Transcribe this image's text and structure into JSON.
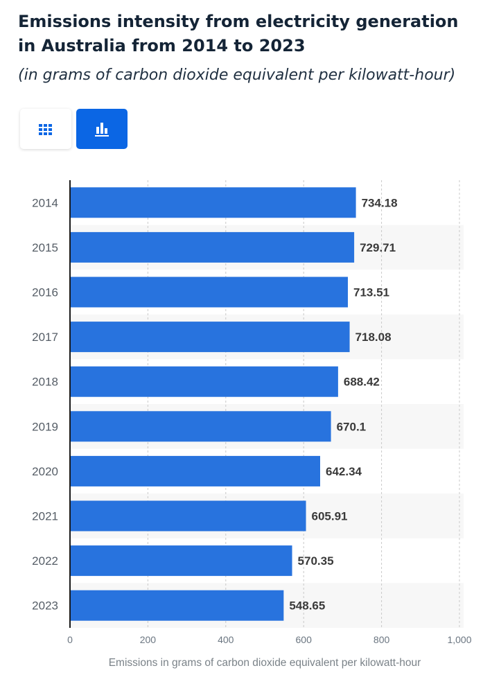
{
  "header": {
    "title": "Emissions intensity from electricity generation in Australia from 2014 to 2023",
    "subtitle": "(in grams of carbon dioxide equivalent per kilowatt-hour)"
  },
  "view_toggle": {
    "table_icon": "grid-table-icon",
    "chart_icon": "bar-chart-icon",
    "selected": "chart"
  },
  "colors": {
    "bar": "#2873de",
    "accent": "#0b66e4",
    "band": "#f7f7f7",
    "grid": "#c8c8c8"
  },
  "chart_data": {
    "type": "bar",
    "orientation": "horizontal",
    "categories": [
      "2014",
      "2015",
      "2016",
      "2017",
      "2018",
      "2019",
      "2020",
      "2021",
      "2022",
      "2023"
    ],
    "values": [
      734.18,
      729.71,
      713.51,
      718.08,
      688.42,
      670.1,
      642.34,
      605.91,
      570.35,
      548.65
    ],
    "value_labels": [
      "734.18",
      "729.71",
      "713.51",
      "718.08",
      "688.42",
      "670.1",
      "642.34",
      "605.91",
      "570.35",
      "548.65"
    ],
    "xlabel": "Emissions in grams of carbon dioxide equivalent per kilowatt-hour",
    "xlim": [
      0,
      1000
    ],
    "x_ticks": [
      0,
      200,
      400,
      600,
      800,
      1000
    ],
    "x_tick_labels": [
      "0",
      "200",
      "400",
      "600",
      "800",
      "1,000"
    ],
    "grid": true
  }
}
